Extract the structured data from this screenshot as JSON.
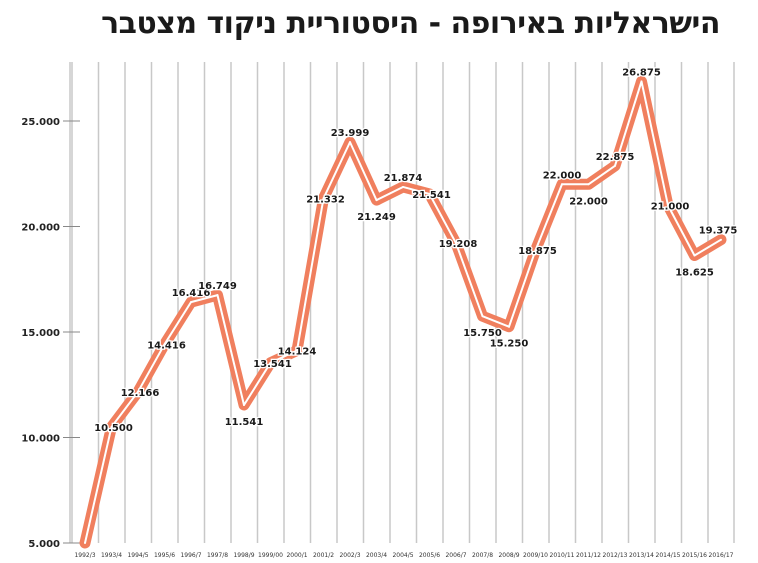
{
  "chart_data": {
    "type": "line",
    "title": "הישראליות באירופה - היסטוריית ניקוד מצטבר",
    "xlabel": "",
    "ylabel": "",
    "categories": [
      "1992/3",
      "1993/4",
      "1994/5",
      "1995/6",
      "1996/7",
      "1997/8",
      "1998/9",
      "1999/00",
      "2000/1",
      "2001/2",
      "2002/3",
      "2003/4",
      "2004/5",
      "2005/6",
      "2006/7",
      "2007/8",
      "2008/9",
      "2009/10",
      "2010/11",
      "2011/12",
      "2012/13",
      "2013/14",
      "2014/15",
      "2015/16",
      "2016/17"
    ],
    "values": [
      5000,
      10500,
      12166,
      14416,
      16416,
      16749,
      11541,
      13541,
      14124,
      21332,
      23999,
      21249,
      21874,
      21541,
      19208,
      15750,
      15250,
      18875,
      22000,
      22000,
      22875,
      26875,
      21000,
      18625,
      19375
    ],
    "data_labels": [
      "",
      "10.500",
      "12.166",
      "14.416",
      "16.416",
      "16.749",
      "11.541",
      "13.541",
      "14.124",
      "21.332",
      "23.999",
      "21.249",
      "21.874",
      "21.541",
      "19.208",
      "15.750",
      "15.250",
      "18.875",
      "22.000",
      "22.000",
      "22.875",
      "26.875",
      "21.000",
      "18.625",
      "19.375"
    ],
    "yticks": [
      5000,
      10000,
      15000,
      20000,
      25000
    ],
    "ytick_labels": [
      "5.000",
      "10.000",
      "15.000",
      "20.000",
      "25.000"
    ],
    "ylim": [
      5000,
      27000
    ],
    "grid": "vertical",
    "line_color": "#f07f5e"
  }
}
